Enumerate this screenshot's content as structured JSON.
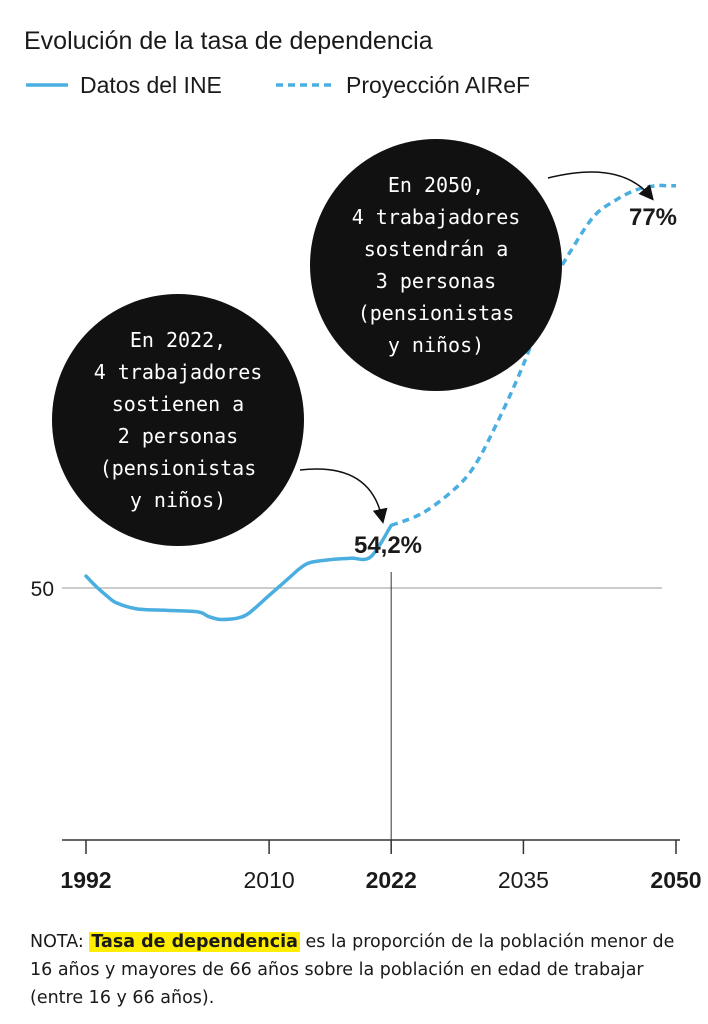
{
  "chart_data": {
    "type": "line",
    "title": "Evolución de la tasa de dependencia",
    "x_ticks": [
      "1992",
      "2010",
      "2022",
      "2035",
      "2050"
    ],
    "x_ticks_bold": [
      true,
      false,
      true,
      false,
      true
    ],
    "y_ticks": [
      "50"
    ],
    "series": [
      {
        "name": "Datos del INE",
        "style": "solid",
        "color": "#4aaee0",
        "x": [
          1992,
          1993,
          1994,
          1995,
          1997,
          2000,
          2003,
          2004,
          2005,
          2006,
          2007,
          2008,
          2010,
          2012,
          2013,
          2014,
          2016,
          2018,
          2020,
          2022
        ],
        "y": [
          50.8,
          50.1,
          49.5,
          49.0,
          48.6,
          48.5,
          48.4,
          48.1,
          47.9,
          47.9,
          48.0,
          48.3,
          49.5,
          50.7,
          51.3,
          51.7,
          51.9,
          52.0,
          52.1,
          54.2
        ]
      },
      {
        "name": "Proyección AIReF",
        "style": "dashed",
        "color": "#4aaee0",
        "x": [
          2022,
          2025,
          2028,
          2030,
          2032,
          2035,
          2038,
          2040,
          2042,
          2044,
          2046,
          2048,
          2049,
          2050
        ],
        "y": [
          54.2,
          55.0,
          56.5,
          58.0,
          60.5,
          65.0,
          70.5,
          73.0,
          75.0,
          76.0,
          76.7,
          77.0,
          77.0,
          77.0
        ]
      }
    ],
    "legend": [
      "Datos del INE",
      "Proyección AIReF"
    ],
    "legend_position": "top-left",
    "point_labels": [
      {
        "x": 2022,
        "text": "54,2%"
      },
      {
        "x": 2050,
        "text": "77%"
      }
    ],
    "annotations": [
      {
        "x": 2022,
        "lines": [
          "En 2022,",
          "4 trabajadores",
          "sostienen a",
          "2 personas",
          "(pensionistas",
          "y niños)"
        ]
      },
      {
        "x": 2050,
        "lines": [
          "En 2050,",
          "4 trabajadores",
          "sostendrán a",
          "3 personas",
          "(pensionistas",
          "y niños)"
        ]
      }
    ]
  },
  "note": {
    "prefix": "NOTA: ",
    "highlight": "Tasa de dependencia",
    "text": " es la proporción de la población menor de 16 años y mayores de 66 años sobre la población en edad de trabajar (entre 16 y 66 años)."
  }
}
